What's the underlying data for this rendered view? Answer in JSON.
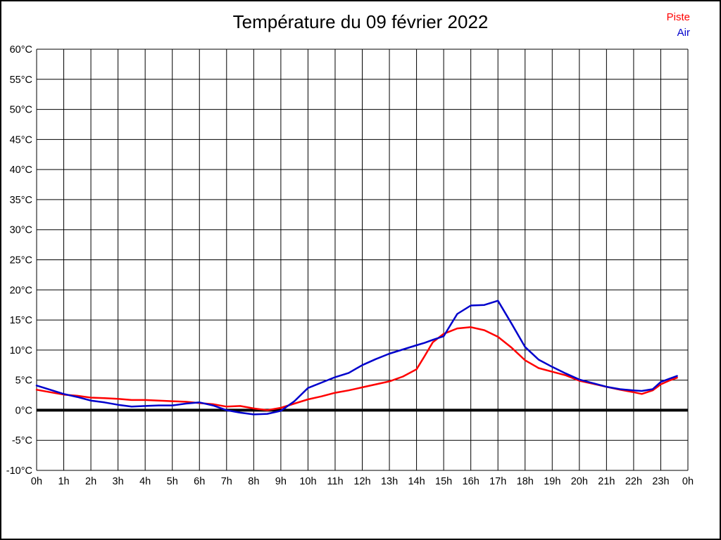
{
  "title": "Température du 09 février 2022",
  "legend": {
    "piste": "Piste",
    "air": "Air"
  },
  "colors": {
    "piste": "#ff0000",
    "air": "#0000cc",
    "grid": "#000000",
    "zero_line": "#000000",
    "background": "#ffffff"
  },
  "chart_data": {
    "type": "line",
    "title": "Température du 09 février 2022",
    "xlabel": "",
    "ylabel": "",
    "xlim": [
      0,
      24
    ],
    "ylim": [
      -10,
      60
    ],
    "grid": true,
    "zero_line_at": 0,
    "legend_position": "top-right",
    "x_tick_labels": [
      "0h",
      "1h",
      "2h",
      "3h",
      "4h",
      "5h",
      "6h",
      "7h",
      "8h",
      "9h",
      "10h",
      "11h",
      "12h",
      "13h",
      "14h",
      "15h",
      "16h",
      "17h",
      "18h",
      "19h",
      "20h",
      "21h",
      "22h",
      "23h",
      "0h"
    ],
    "y_tick_labels": [
      "60°C",
      "55°C",
      "50°C",
      "45°C",
      "40°C",
      "35°C",
      "30°C",
      "25°C",
      "20°C",
      "15°C",
      "10°C",
      "5°C",
      "0°C",
      "-5°C",
      "-10°C"
    ],
    "x": [
      0,
      0.5,
      1,
      1.5,
      2,
      2.5,
      3,
      3.5,
      4,
      4.5,
      5,
      5.5,
      6,
      6.5,
      7,
      7.5,
      8,
      8.5,
      9,
      9.5,
      10,
      10.5,
      11,
      11.5,
      12,
      12.5,
      13,
      13.5,
      14,
      14.3,
      14.6,
      15,
      15.5,
      16,
      16.5,
      17,
      17.5,
      18,
      18.5,
      19,
      19.5,
      20,
      20.5,
      21,
      21.5,
      22,
      22.3,
      22.7,
      23,
      23.3,
      23.6
    ],
    "series": [
      {
        "name": "Piste",
        "color": "#ff0000",
        "values": [
          3.4,
          3.0,
          2.6,
          2.4,
          2.1,
          2.0,
          1.9,
          1.7,
          1.7,
          1.6,
          1.5,
          1.4,
          1.2,
          1.0,
          0.6,
          0.7,
          0.3,
          0.0,
          0.4,
          1.1,
          1.8,
          2.3,
          2.9,
          3.3,
          3.8,
          4.3,
          4.8,
          5.6,
          6.8,
          9.0,
          11.3,
          12.7,
          13.6,
          13.8,
          13.3,
          12.2,
          10.4,
          8.3,
          7.0,
          6.4,
          5.8,
          4.9,
          4.4,
          3.9,
          3.4,
          3.0,
          2.7,
          3.3,
          4.3,
          4.9,
          5.4
        ]
      },
      {
        "name": "Air",
        "color": "#0000cc",
        "values": [
          4.1,
          3.4,
          2.7,
          2.2,
          1.6,
          1.3,
          0.9,
          0.6,
          0.7,
          0.8,
          0.8,
          1.1,
          1.3,
          0.8,
          0.0,
          -0.4,
          -0.7,
          -0.6,
          -0.1,
          1.5,
          3.7,
          4.6,
          5.5,
          6.2,
          7.5,
          8.5,
          9.4,
          10.1,
          10.8,
          11.2,
          11.7,
          12.3,
          16.0,
          17.4,
          17.5,
          18.2,
          14.4,
          10.5,
          8.4,
          7.2,
          6.1,
          5.1,
          4.5,
          3.9,
          3.5,
          3.3,
          3.2,
          3.5,
          4.7,
          5.2,
          5.7
        ]
      }
    ]
  }
}
